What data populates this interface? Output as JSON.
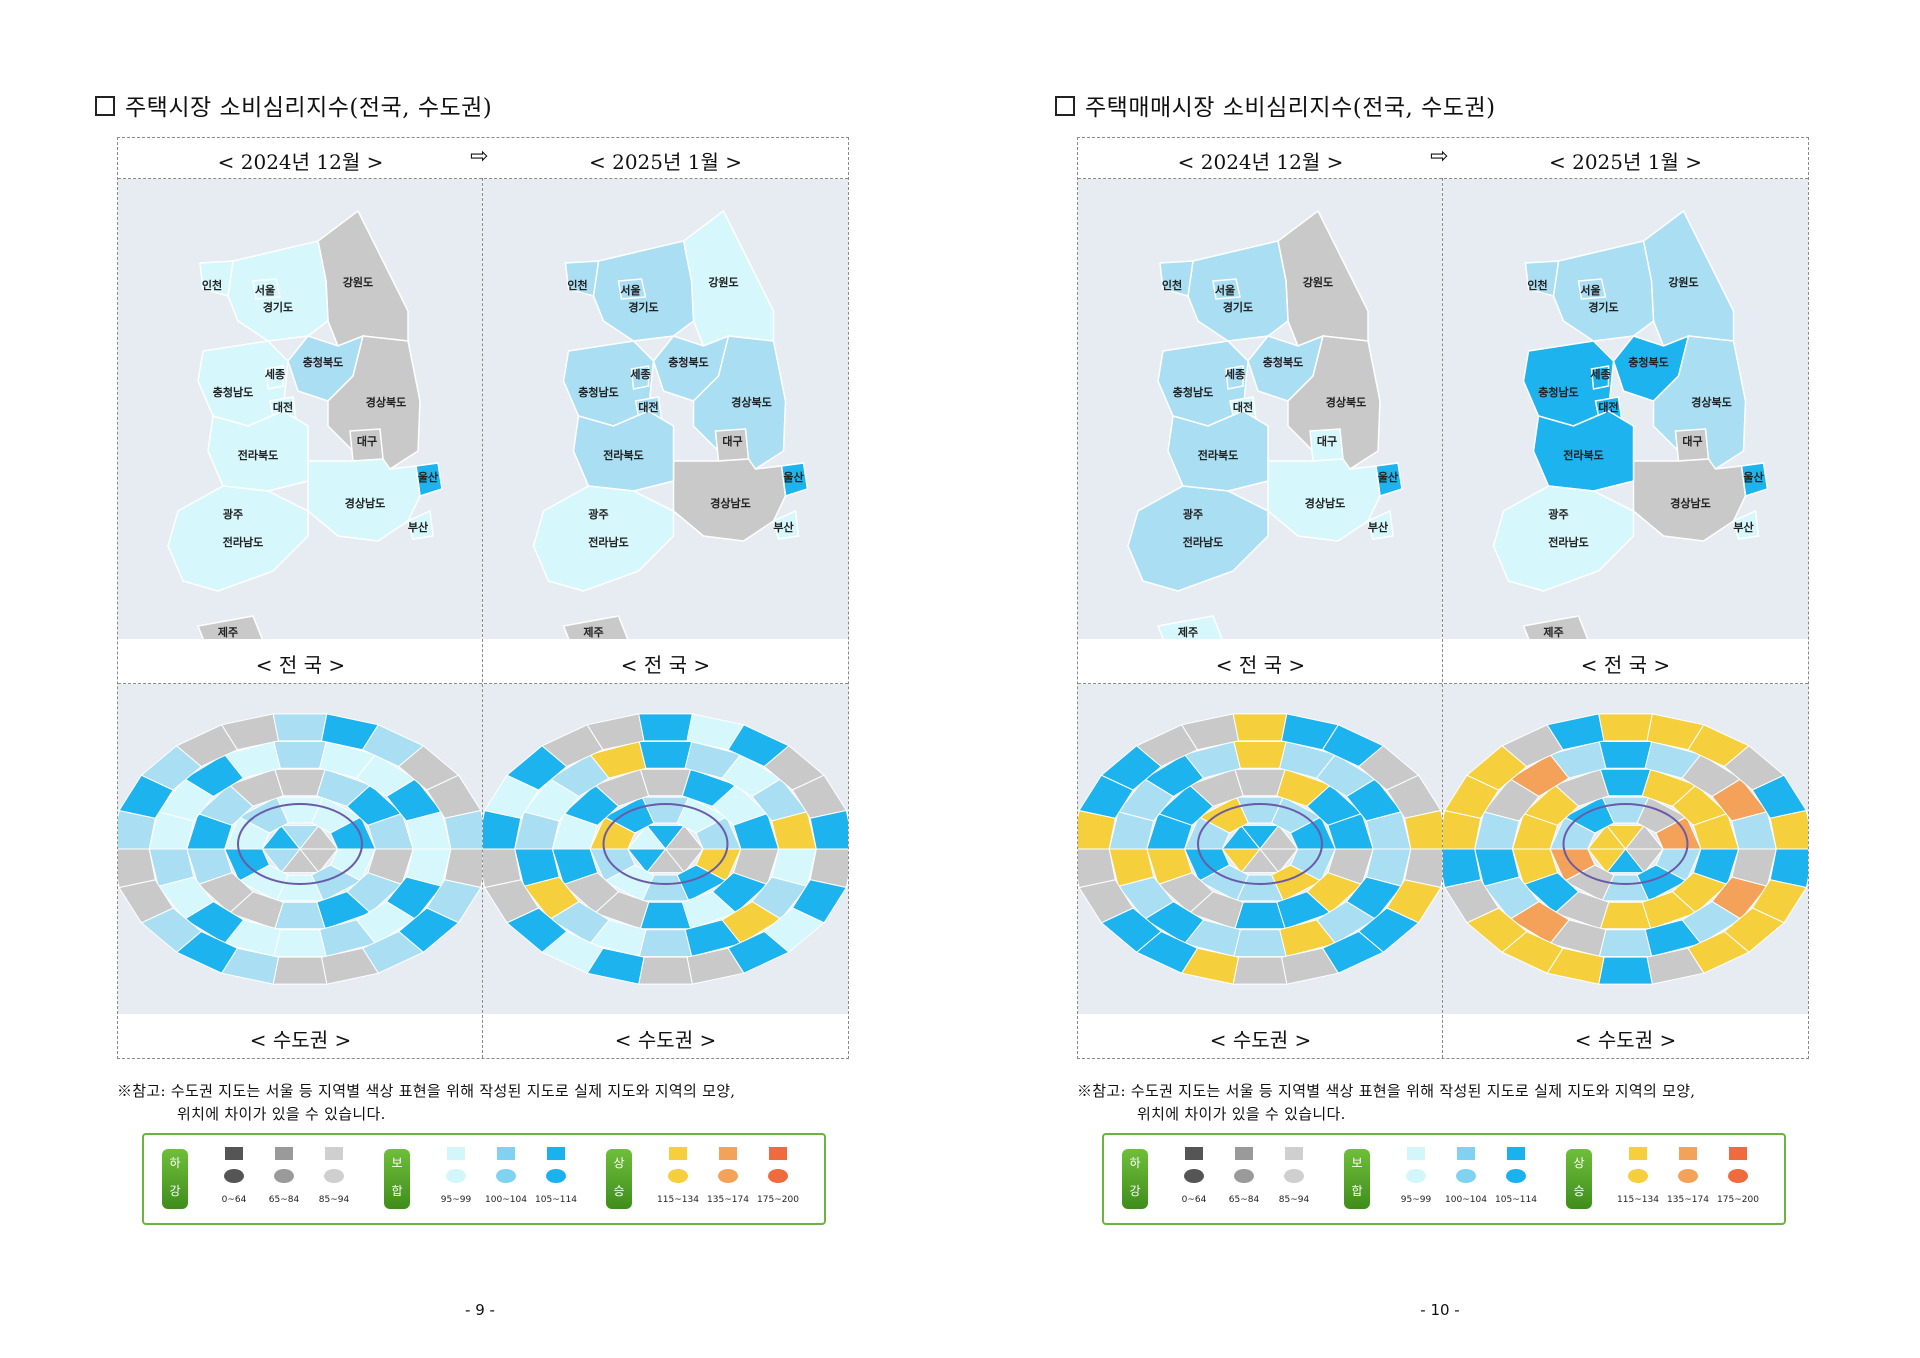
{
  "pages": [
    {
      "heading": "주택시장 소비심리지수(전국, 수도권)",
      "month_before": "< 2024년 12월 >",
      "month_after": "< 2025년 1월 >",
      "caption_national": "< 전  국 >",
      "caption_metro": "< 수도권 >",
      "page_number": "- 9 -",
      "maps": {
        "national_before": {
          "강원도": "gray",
          "경기도": "l1",
          "인천": "l1",
          "서울": "l1",
          "충청북도": "l2",
          "충청남도": "l1",
          "세종": "l1",
          "대전": "l1",
          "경상북도": "gray",
          "대구": "gray",
          "울산": "l3",
          "경상남도": "l1",
          "부산": "l1",
          "전라북도": "l1",
          "광주": "l1",
          "전라남도": "l1",
          "제주": "gray"
        },
        "national_after": {
          "강원도": "l1",
          "경기도": "l2",
          "인천": "l2",
          "서울": "l2",
          "충청북도": "l2",
          "충청남도": "l2",
          "세종": "l2",
          "대전": "l2",
          "경상북도": "l2",
          "대구": "gray",
          "울산": "l3",
          "경상남도": "gray",
          "부산": "l1",
          "전라북도": "l2",
          "광주": "l1",
          "전라남도": "l1",
          "제주": "gray"
        }
      }
    },
    {
      "heading": "주택매매시장 소비심리지수(전국, 수도권)",
      "month_before": "< 2024년 12월 >",
      "month_after": "< 2025년 1월 >",
      "caption_national": "< 전  국 >",
      "caption_metro": "< 수도권 >",
      "page_number": "- 10 -",
      "maps": {
        "national_before": {
          "강원도": "gray",
          "경기도": "l2",
          "인천": "l2",
          "서울": "l2",
          "충청북도": "l2",
          "충청남도": "l2",
          "세종": "l2",
          "대전": "l1",
          "경상북도": "gray",
          "대구": "l1",
          "울산": "l3",
          "경상남도": "l1",
          "부산": "l1",
          "전라북도": "l2",
          "광주": "l2",
          "전라남도": "l2",
          "제주": "l1"
        },
        "national_after": {
          "강원도": "l2",
          "경기도": "l2",
          "인천": "l2",
          "서울": "l2",
          "충청북도": "l3",
          "충청남도": "l3",
          "세종": "l3",
          "대전": "l3",
          "경상북도": "l2",
          "대구": "gray",
          "울산": "l3",
          "경상남도": "gray",
          "부산": "l1",
          "전라북도": "l3",
          "광주": "l1",
          "전라남도": "l1",
          "제주": "gray"
        }
      }
    }
  ],
  "note_line1": "※참고: 수도권 지도는 서울 등 지역별 색상 표현을 위해 작성된 지도로 실제 지도와 지역의 모양,",
  "note_line2": "위치에 차이가 있을 수 있습니다.",
  "legend": {
    "groups": [
      {
        "name_top": "하",
        "name_bottom": "강"
      },
      {
        "name_top": "보",
        "name_bottom": "합"
      },
      {
        "name_top": "상",
        "name_bottom": "승"
      }
    ],
    "levels": [
      {
        "range": "0~64",
        "color": "#555555"
      },
      {
        "range": "65~84",
        "color": "#9a9a9a"
      },
      {
        "range": "85~94",
        "color": "#cfcfcf"
      },
      {
        "range": "95~99",
        "color": "#d2f6fa"
      },
      {
        "range": "100~104",
        "color": "#7fd3f0"
      },
      {
        "range": "105~114",
        "color": "#1ab2ee"
      },
      {
        "range": "115~134",
        "color": "#f6cf3c"
      },
      {
        "range": "135~174",
        "color": "#f4a25a"
      },
      {
        "range": "175~200",
        "color": "#ef6a3c"
      }
    ]
  },
  "colors": {
    "gray": "#c9c9c9",
    "l1": "#d6f7fb",
    "l2": "#a9def3",
    "l3": "#1db3ee",
    "yellow": "#f6cf3c",
    "orange": "#f4a25a",
    "background": "#e6ecf2"
  }
}
